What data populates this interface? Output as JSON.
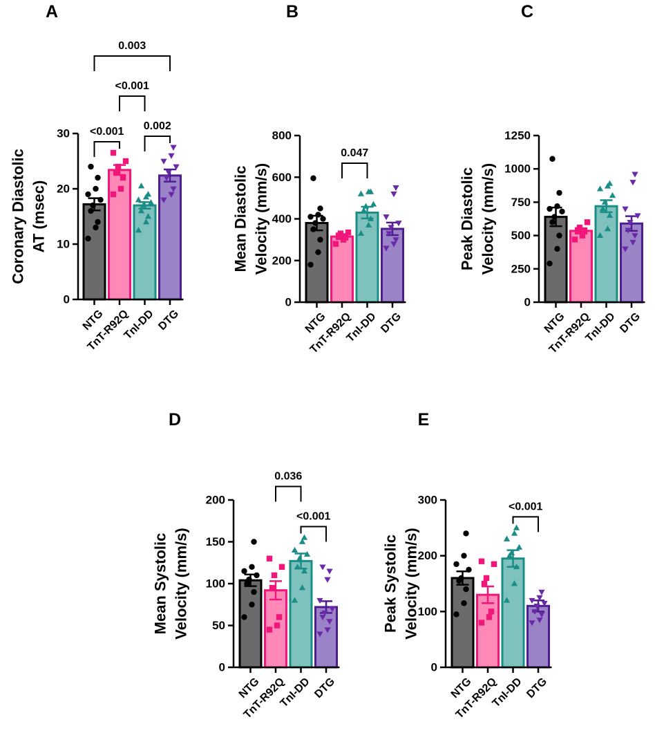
{
  "colors": {
    "NTG": {
      "fill": "#6b6b6b",
      "stroke": "#000000",
      "point": "#000000"
    },
    "TnT-R92Q": {
      "fill": "#ff89b6",
      "stroke": "#f0167a",
      "point": "#f0167a"
    },
    "TnI-DD": {
      "fill": "#7fc2bd",
      "stroke": "#1a8e86",
      "point": "#1a8e86"
    },
    "DTG": {
      "fill": "#9b83c8",
      "stroke": "#4f1d91",
      "point": "#6a2aa8"
    }
  },
  "chart_data": [
    {
      "id": "A",
      "type": "bar",
      "panel_label": "A",
      "ylabel_lines": [
        "Coronary Diastolic",
        "AT (msec)"
      ],
      "ylim": [
        0,
        30
      ],
      "yticks": [
        0,
        10,
        20,
        30
      ],
      "categories": [
        "NTG",
        "TnT-R92Q",
        "TnI-DD",
        "DTG"
      ],
      "category_keys": [
        "NTG",
        "TnT-R92Q",
        "TnI-DD",
        "DTG"
      ],
      "point_shapes": [
        "circle",
        "square",
        "triangle-up",
        "triangle-down"
      ],
      "means": [
        17.2,
        23.4,
        17.0,
        22.4
      ],
      "sems": [
        1.1,
        0.9,
        0.6,
        1.1
      ],
      "points": [
        [
          11,
          13,
          14,
          16,
          17,
          18,
          19,
          20,
          22,
          24
        ],
        [
          19,
          20,
          22,
          23,
          24,
          25,
          26.5
        ],
        [
          12.5,
          14,
          15,
          16,
          17,
          17.5,
          18,
          18.5,
          19,
          20.5
        ],
        [
          18,
          19,
          20,
          22,
          23,
          24,
          25,
          26,
          27.5
        ]
      ],
      "significance": [
        {
          "groups": [
            0,
            1
          ],
          "label": "<0.001",
          "level": 0
        },
        {
          "groups": [
            2,
            3
          ],
          "label": "0.002",
          "level": 0
        },
        {
          "groups": [
            1,
            2
          ],
          "label": "<0.001",
          "level": 1
        },
        {
          "groups": [
            0,
            3
          ],
          "label": "0.003",
          "level": 2
        }
      ]
    },
    {
      "id": "B",
      "type": "bar",
      "panel_label": "B",
      "ylabel_lines": [
        "Mean Diastolic",
        "Velocity (mm/s)"
      ],
      "ylim": [
        0,
        800
      ],
      "yticks": [
        0,
        200,
        400,
        600,
        800
      ],
      "categories": [
        "NTG",
        "TnT-R92Q",
        "TnI-DD",
        "DTG"
      ],
      "category_keys": [
        "NTG",
        "TnT-R92Q",
        "TnI-DD",
        "DTG"
      ],
      "point_shapes": [
        "circle",
        "square",
        "triangle-up",
        "triangle-down"
      ],
      "means": [
        380,
        315,
        430,
        352
      ],
      "sems": [
        35,
        12,
        28,
        30
      ],
      "points": [
        [
          180,
          240,
          300,
          350,
          380,
          400,
          410,
          420,
          450,
          595
        ],
        [
          280,
          300,
          310,
          320,
          330,
          335
        ],
        [
          330,
          370,
          400,
          440,
          460,
          470,
          520,
          530,
          530
        ],
        [
          260,
          280,
          300,
          330,
          360,
          380,
          410,
          520,
          550
        ]
      ],
      "significance": [
        {
          "groups": [
            1,
            2
          ],
          "label": "0.047",
          "level": 0
        }
      ]
    },
    {
      "id": "C",
      "type": "bar",
      "panel_label": "C",
      "ylabel_lines": [
        "Peak Diastolic",
        "Velocity (mm/s)"
      ],
      "ylim": [
        0,
        1250
      ],
      "yticks": [
        0,
        250,
        500,
        750,
        1000,
        1250
      ],
      "categories": [
        "NTG",
        "TnT-R92Q",
        "TnI-DD",
        "DTG"
      ],
      "category_keys": [
        "NTG",
        "TnT-R92Q",
        "TnI-DD",
        "DTG"
      ],
      "point_shapes": [
        "circle",
        "square",
        "triangle-up",
        "triangle-down"
      ],
      "means": [
        640,
        535,
        720,
        590
      ],
      "sems": [
        70,
        20,
        45,
        55
      ],
      "points": [
        [
          290,
          400,
          500,
          600,
          640,
          680,
          700,
          720,
          820,
          1075
        ],
        [
          470,
          500,
          530,
          540,
          560,
          600
        ],
        [
          500,
          550,
          650,
          700,
          750,
          800,
          850,
          870,
          890
        ],
        [
          400,
          450,
          500,
          540,
          600,
          650,
          700,
          900,
          960
        ]
      ],
      "significance": []
    },
    {
      "id": "D",
      "type": "bar",
      "panel_label": "D",
      "ylabel_lines": [
        "Mean Systolic",
        "Velocity (mm/s)"
      ],
      "ylim": [
        0,
        200
      ],
      "yticks": [
        0,
        50,
        100,
        150,
        200
      ],
      "categories": [
        "NTG",
        "TnT-R92Q",
        "TnI-DD",
        "DTG"
      ],
      "category_keys": [
        "NTG",
        "TnT-R92Q",
        "TnI-DD",
        "DTG"
      ],
      "point_shapes": [
        "circle",
        "square",
        "triangle-up",
        "triangle-down"
      ],
      "means": [
        104,
        92,
        127,
        72
      ],
      "sems": [
        7,
        11,
        9,
        7
      ],
      "points": [
        [
          60,
          75,
          90,
          100,
          105,
          110,
          115,
          120,
          150
        ],
        [
          45,
          50,
          60,
          95,
          110,
          120,
          130
        ],
        [
          80,
          95,
          115,
          120,
          130,
          135,
          140,
          150,
          155
        ],
        [
          40,
          45,
          55,
          60,
          65,
          70,
          80,
          105,
          115,
          120
        ]
      ],
      "significance": [
        {
          "groups": [
            2,
            3
          ],
          "label": "<0.001",
          "level": 0
        },
        {
          "groups": [
            1,
            2
          ],
          "label": "0.036",
          "level": 1
        }
      ]
    },
    {
      "id": "E",
      "type": "bar",
      "panel_label": "E",
      "ylabel_lines": [
        "Peak Systolic",
        "Velocity (mm/s)"
      ],
      "ylim": [
        0,
        300
      ],
      "yticks": [
        0,
        100,
        200,
        300
      ],
      "categories": [
        "NTG",
        "TnT-R92Q",
        "TnI-DD",
        "DTG"
      ],
      "category_keys": [
        "NTG",
        "TnT-R92Q",
        "TnI-DD",
        "DTG"
      ],
      "point_shapes": [
        "circle",
        "square",
        "triangle-up",
        "triangle-down"
      ],
      "means": [
        160,
        130,
        195,
        110
      ],
      "sems": [
        12,
        15,
        15,
        10
      ],
      "points": [
        [
          95,
          115,
          140,
          155,
          160,
          175,
          185,
          200,
          240
        ],
        [
          80,
          90,
          100,
          150,
          160,
          185,
          190
        ],
        [
          120,
          150,
          180,
          200,
          205,
          215,
          230,
          240,
          250
        ],
        [
          80,
          85,
          95,
          100,
          110,
          115,
          120,
          125,
          135
        ]
      ],
      "significance": [
        {
          "groups": [
            2,
            3
          ],
          "label": "<0.001",
          "level": 0
        }
      ]
    }
  ]
}
